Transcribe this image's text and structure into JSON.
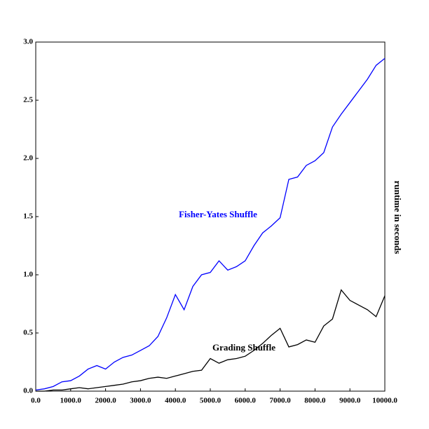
{
  "chart_data": {
    "type": "line",
    "ylabel": "runtime in seconds",
    "x": [
      0,
      250,
      500,
      750,
      1000,
      1250,
      1500,
      1750,
      2000,
      2250,
      2500,
      2750,
      3000,
      3250,
      3500,
      3750,
      4000,
      4250,
      4500,
      4750,
      5000,
      5250,
      5500,
      5750,
      6000,
      6250,
      6500,
      6750,
      7000,
      7250,
      7500,
      7750,
      8000,
      8250,
      8500,
      8750,
      9000,
      9250,
      9500,
      9750,
      10000
    ],
    "series": [
      {
        "name": "Fisher-Yates Shuffle",
        "color": "#0000ff",
        "values": [
          0.01,
          0.02,
          0.04,
          0.08,
          0.09,
          0.13,
          0.19,
          0.22,
          0.19,
          0.25,
          0.29,
          0.31,
          0.35,
          0.39,
          0.47,
          0.63,
          0.83,
          0.7,
          0.9,
          1.0,
          1.02,
          1.12,
          1.04,
          1.07,
          1.12,
          1.25,
          1.36,
          1.42,
          1.49,
          1.82,
          1.84,
          1.94,
          1.98,
          2.05,
          2.27,
          2.38,
          2.48,
          2.58,
          2.68,
          2.8,
          2.86
        ]
      },
      {
        "name": "Grading Shuffle",
        "color": "#000000",
        "values": [
          0.0,
          0.0,
          0.01,
          0.01,
          0.02,
          0.03,
          0.02,
          0.03,
          0.04,
          0.05,
          0.06,
          0.08,
          0.09,
          0.11,
          0.12,
          0.11,
          0.13,
          0.15,
          0.17,
          0.18,
          0.28,
          0.24,
          0.27,
          0.28,
          0.3,
          0.35,
          0.41,
          0.48,
          0.54,
          0.38,
          0.4,
          0.44,
          0.42,
          0.56,
          0.62,
          0.87,
          0.78,
          0.74,
          0.7,
          0.64,
          0.82
        ]
      }
    ],
    "xlim": [
      0,
      10000
    ],
    "xticks": [
      {
        "value": 0,
        "label": "0.0"
      },
      {
        "value": 1000,
        "label": "1000.0"
      },
      {
        "value": 2000,
        "label": "2000.0"
      },
      {
        "value": 3000,
        "label": "3000.0"
      },
      {
        "value": 4000,
        "label": "4000.0"
      },
      {
        "value": 5000,
        "label": "5000.0"
      },
      {
        "value": 6000,
        "label": "6000.0"
      },
      {
        "value": 7000,
        "label": "7000.0"
      },
      {
        "value": 8000,
        "label": "8000.0"
      },
      {
        "value": 9000,
        "label": "9000.0"
      },
      {
        "value": 10000,
        "label": "10000.0"
      }
    ],
    "ylim": [
      0,
      3
    ],
    "yticks": [
      {
        "value": 0,
        "label": "0.0"
      },
      0.5,
      {
        "value": 1,
        "label": "1.0"
      },
      1.5,
      {
        "value": 2,
        "label": "2.0"
      },
      2.5,
      {
        "value": 3,
        "label": "3.0"
      }
    ]
  }
}
